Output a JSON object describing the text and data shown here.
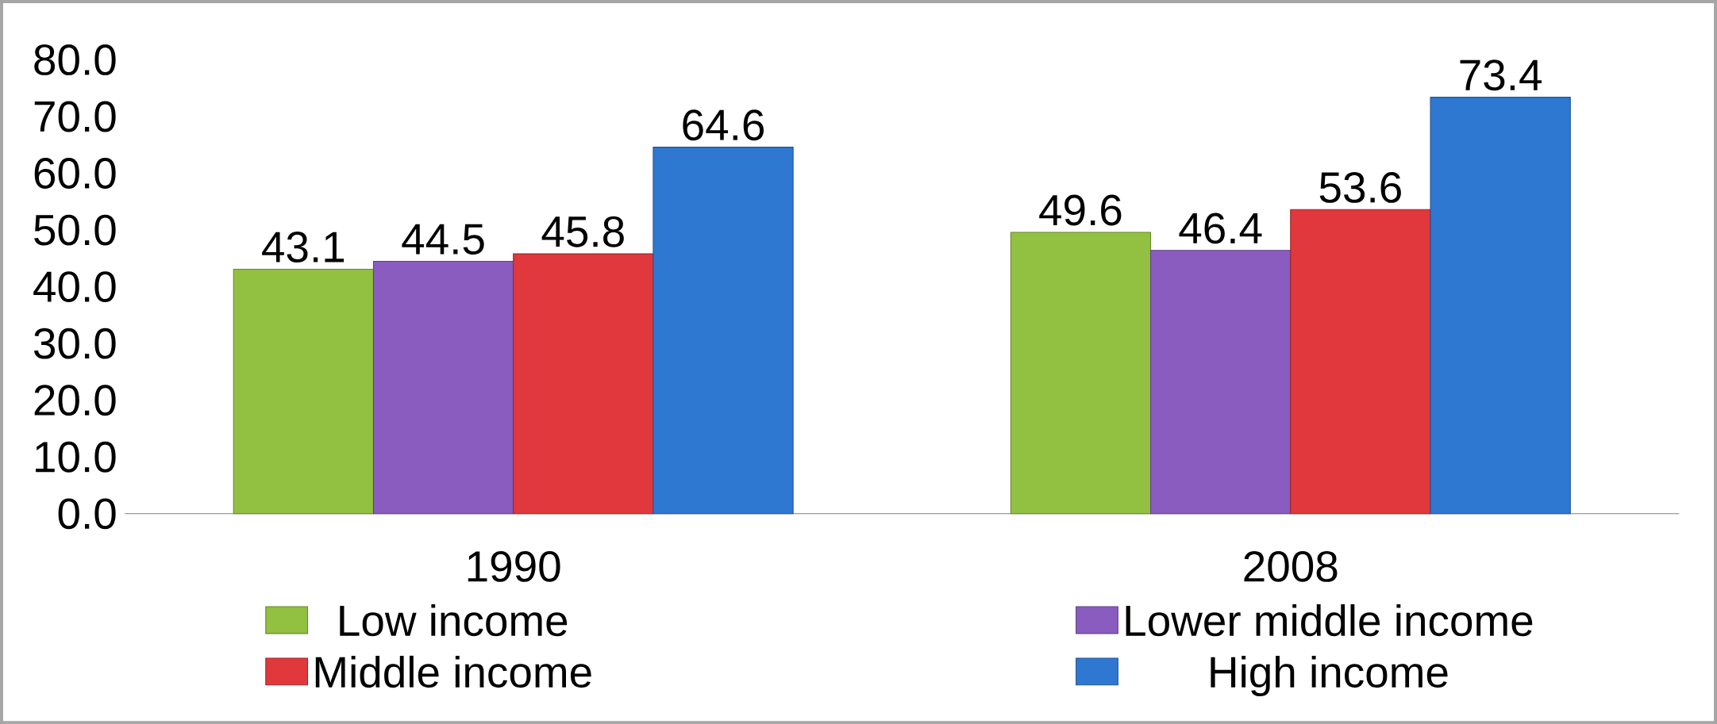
{
  "chart_data": {
    "type": "bar",
    "categories": [
      "1990",
      "2008"
    ],
    "series": [
      {
        "name": "Low income",
        "color": "#92c040",
        "values": [
          43.1,
          49.6
        ]
      },
      {
        "name": "Lower middle income",
        "color": "#8a5cbf",
        "values": [
          44.5,
          46.4
        ]
      },
      {
        "name": "Middle income",
        "color": "#e0383c",
        "values": [
          45.8,
          53.6
        ]
      },
      {
        "name": "High income",
        "color": "#2f78d2",
        "values": [
          64.6,
          73.4
        ]
      }
    ],
    "ylim": [
      0,
      80
    ],
    "yticks": [
      {
        "value": 0,
        "label": "0.0"
      },
      {
        "value": 10,
        "label": "10.0"
      },
      {
        "value": 20,
        "label": "20.0"
      },
      {
        "value": 30,
        "label": "30.0"
      },
      {
        "value": 40,
        "label": "40.0"
      },
      {
        "value": 50,
        "label": "50.0"
      },
      {
        "value": 60,
        "label": "60.0"
      },
      {
        "value": 70,
        "label": "70.0"
      },
      {
        "value": 80,
        "label": "80.0"
      }
    ],
    "data_labels": true,
    "legend": "bottom",
    "grid": false
  }
}
